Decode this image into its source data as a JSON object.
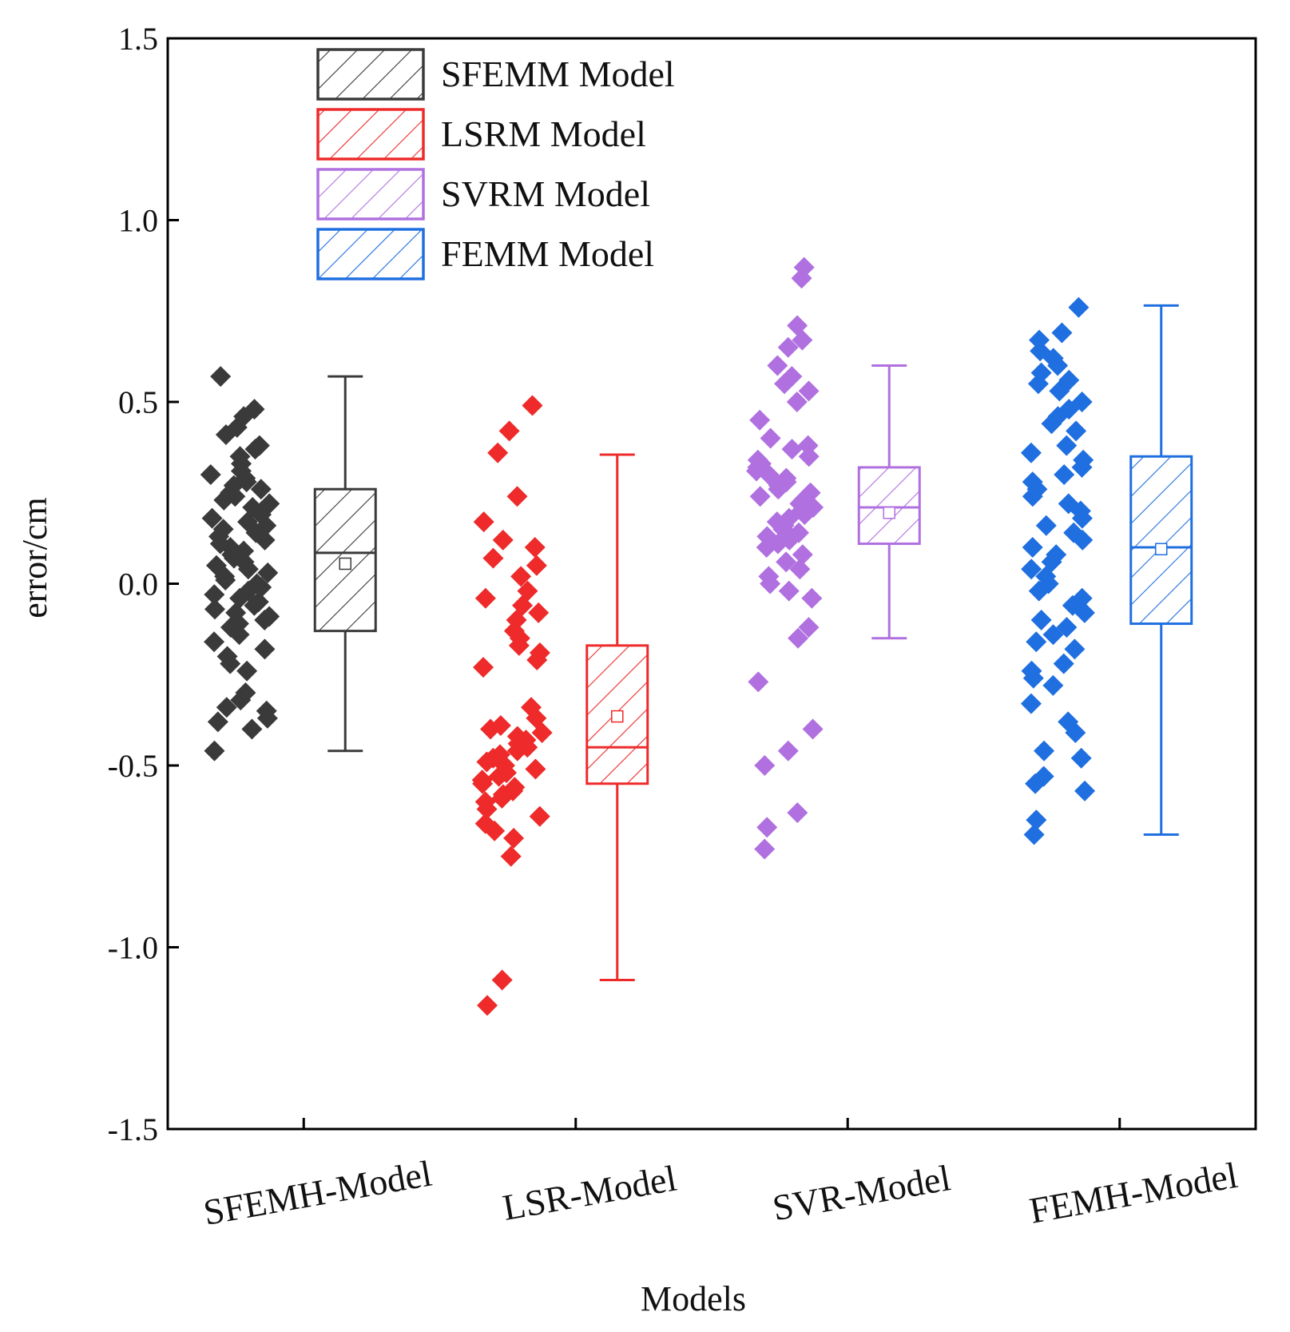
{
  "chart_data": {
    "type": "box",
    "title": "",
    "xlabel": "Models",
    "ylabel": "error/cm",
    "ylim": [
      -1.5,
      1.5
    ],
    "yticks": [
      1.5,
      1.0,
      0.5,
      0.0,
      -0.5,
      -1.0,
      -1.5
    ],
    "ytick_labels": [
      "1.5",
      "1.0",
      "0.5",
      "0.0",
      "-0.5",
      "-1.0",
      "-1.5"
    ],
    "categories": [
      "SFEMH-Model",
      "LSR-Model",
      "SVR-Model",
      "FEMH-Model"
    ],
    "legend": {
      "position": "top-left",
      "entries": [
        "SFEMM Model",
        "LSRM Model",
        "SVRM Model",
        "FEMM Model"
      ]
    },
    "series": [
      {
        "name": "SFEMM Model",
        "category": "SFEMH-Model",
        "color": "#3a3a3a",
        "whisker_low": -0.46,
        "q1": -0.13,
        "median": 0.085,
        "q3": 0.26,
        "whisker_high": 0.57,
        "mean": 0.055,
        "points": [
          0.57,
          0.48,
          0.46,
          0.43,
          0.41,
          0.38,
          0.37,
          0.35,
          0.33,
          0.31,
          0.3,
          0.29,
          0.28,
          0.27,
          0.26,
          0.25,
          0.24,
          0.23,
          0.22,
          0.21,
          0.2,
          0.19,
          0.18,
          0.17,
          0.16,
          0.15,
          0.14,
          0.13,
          0.12,
          0.11,
          0.1,
          0.09,
          0.08,
          0.07,
          0.06,
          0.05,
          0.04,
          0.03,
          0.02,
          0.01,
          0.0,
          -0.01,
          -0.02,
          -0.03,
          -0.04,
          -0.05,
          -0.06,
          -0.07,
          -0.08,
          -0.09,
          -0.1,
          -0.11,
          -0.12,
          -0.14,
          -0.16,
          -0.18,
          -0.2,
          -0.22,
          -0.24,
          -0.3,
          -0.32,
          -0.34,
          -0.35,
          -0.37,
          -0.38,
          -0.4,
          -0.46
        ]
      },
      {
        "name": "LSRM Model",
        "category": "LSR-Model",
        "color": "#ee2a2a",
        "whisker_low": -1.09,
        "q1": -0.55,
        "median": -0.45,
        "q3": -0.17,
        "whisker_high": 0.355,
        "mean": -0.365,
        "points": [
          0.49,
          0.42,
          0.36,
          0.24,
          0.17,
          0.12,
          0.1,
          0.07,
          0.05,
          0.02,
          -0.02,
          -0.04,
          -0.06,
          -0.08,
          -0.1,
          -0.13,
          -0.15,
          -0.17,
          -0.19,
          -0.21,
          -0.23,
          -0.34,
          -0.37,
          -0.39,
          -0.4,
          -0.41,
          -0.42,
          -0.43,
          -0.44,
          -0.45,
          -0.46,
          -0.47,
          -0.48,
          -0.49,
          -0.5,
          -0.51,
          -0.52,
          -0.53,
          -0.54,
          -0.55,
          -0.56,
          -0.57,
          -0.58,
          -0.59,
          -0.6,
          -0.62,
          -0.64,
          -0.66,
          -0.68,
          -0.7,
          -0.75,
          -1.09,
          -1.16
        ]
      },
      {
        "name": "SVRM Model",
        "category": "SVR-Model",
        "color": "#b070e0",
        "whisker_low": -0.15,
        "q1": 0.11,
        "median": 0.21,
        "q3": 0.32,
        "whisker_high": 0.6,
        "mean": 0.195,
        "points": [
          0.87,
          0.84,
          0.71,
          0.67,
          0.65,
          0.6,
          0.57,
          0.55,
          0.53,
          0.5,
          0.45,
          0.4,
          0.38,
          0.37,
          0.35,
          0.34,
          0.33,
          0.32,
          0.31,
          0.3,
          0.29,
          0.28,
          0.27,
          0.26,
          0.25,
          0.24,
          0.23,
          0.22,
          0.21,
          0.2,
          0.19,
          0.18,
          0.17,
          0.16,
          0.15,
          0.14,
          0.13,
          0.12,
          0.11,
          0.1,
          0.08,
          0.06,
          0.04,
          0.02,
          0.0,
          -0.02,
          -0.04,
          -0.12,
          -0.15,
          -0.27,
          -0.4,
          -0.46,
          -0.5,
          -0.63,
          -0.67,
          -0.73
        ]
      },
      {
        "name": "FEMM Model",
        "category": "FEMH-Model",
        "color": "#1f6fe0",
        "whisker_low": -0.69,
        "q1": -0.11,
        "median": 0.1,
        "q3": 0.35,
        "whisker_high": 0.765,
        "mean": 0.095,
        "points": [
          0.76,
          0.69,
          0.67,
          0.64,
          0.62,
          0.6,
          0.58,
          0.56,
          0.55,
          0.53,
          0.5,
          0.48,
          0.46,
          0.44,
          0.42,
          0.38,
          0.36,
          0.34,
          0.32,
          0.3,
          0.28,
          0.26,
          0.24,
          0.22,
          0.2,
          0.18,
          0.16,
          0.14,
          0.12,
          0.1,
          0.08,
          0.06,
          0.04,
          0.02,
          0.0,
          -0.02,
          -0.04,
          -0.06,
          -0.08,
          -0.1,
          -0.12,
          -0.14,
          -0.16,
          -0.18,
          -0.22,
          -0.24,
          -0.26,
          -0.28,
          -0.33,
          -0.38,
          -0.41,
          -0.46,
          -0.48,
          -0.53,
          -0.55,
          -0.57,
          -0.65,
          -0.69
        ]
      }
    ]
  }
}
